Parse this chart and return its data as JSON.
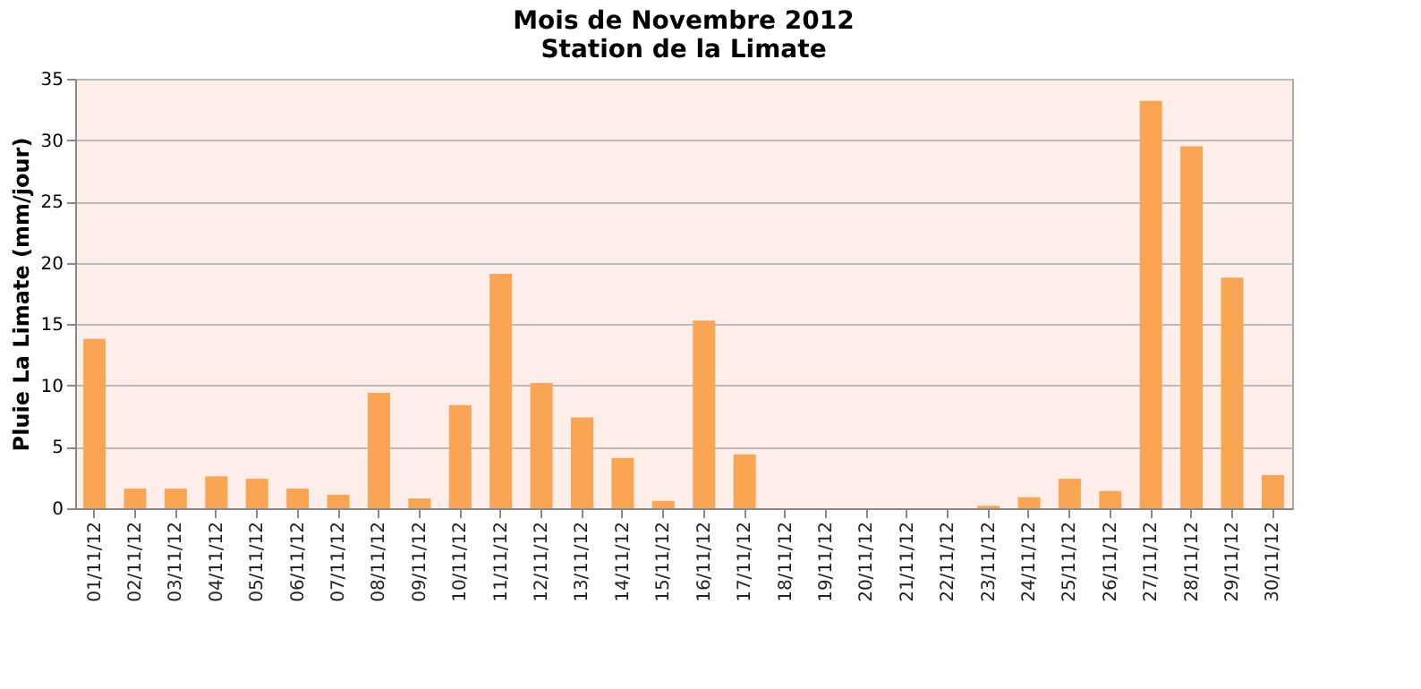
{
  "chart_data": {
    "type": "bar",
    "title": [
      "Mois de Novembre 2012",
      "Station de la Limate"
    ],
    "ylabel": "Pluie La Limate (mm/jour)",
    "categories": [
      "01/11/12",
      "02/11/12",
      "03/11/12",
      "04/11/12",
      "05/11/12",
      "06/11/12",
      "07/11/12",
      "08/11/12",
      "09/11/12",
      "10/11/12",
      "11/11/12",
      "12/11/12",
      "13/11/12",
      "14/11/12",
      "15/11/12",
      "16/11/12",
      "17/11/12",
      "18/11/12",
      "19/11/12",
      "20/11/12",
      "21/11/12",
      "22/11/12",
      "23/11/12",
      "24/11/12",
      "25/11/12",
      "26/11/12",
      "27/11/12",
      "28/11/12",
      "29/11/12",
      "30/11/12"
    ],
    "values": [
      13.8,
      1.6,
      1.6,
      2.6,
      2.4,
      1.6,
      1.1,
      9.4,
      0.8,
      8.4,
      19.1,
      10.2,
      7.4,
      4.1,
      0.6,
      15.3,
      4.4,
      0,
      0,
      0,
      0,
      0,
      0.2,
      0.9,
      2.4,
      1.4,
      33.2,
      29.5,
      18.8,
      2.7
    ],
    "color": "#f9a553",
    "ylim": [
      0,
      35
    ],
    "yticks": [
      0,
      5,
      10,
      15,
      20,
      25,
      30,
      35
    ],
    "grid": "y"
  }
}
